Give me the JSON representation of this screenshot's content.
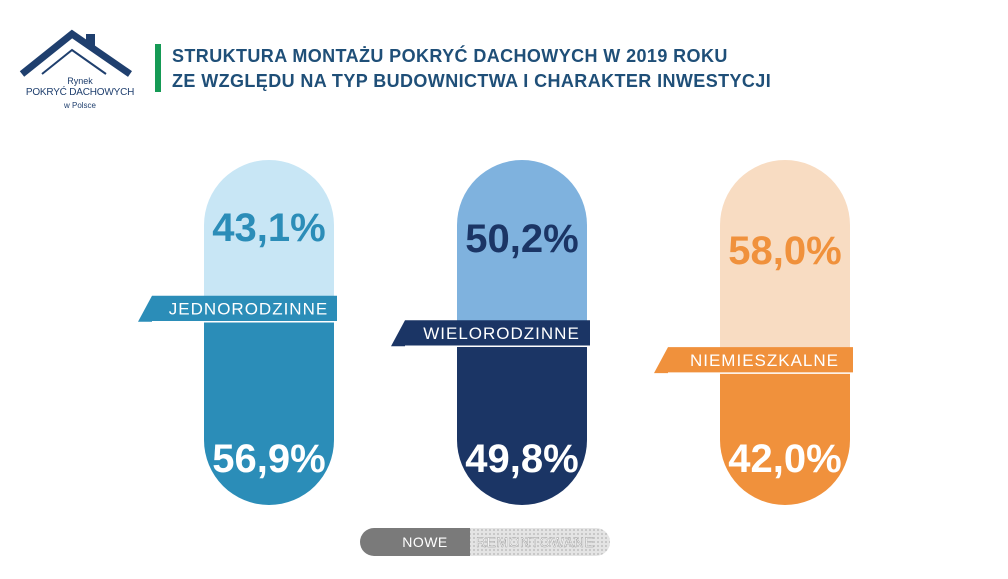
{
  "logo": {
    "line1": "Rynek",
    "line2": "POKRYĆ DACHOWYCH",
    "line3": "w Polsce",
    "icon": "house-roof-icon"
  },
  "title": {
    "line1": "STRUKTURA MONTAŻU POKRYĆ DACHOWYCH W 2019 ROKU",
    "line2": "ZE WZGLĘDU NA TYP BUDOWNICTWA I CHARAKTER INWESTYCJI"
  },
  "colors": {
    "title_text": "#1f4f78",
    "title_accent": "#159a55",
    "logo": "#1f3f6e"
  },
  "chart_data": {
    "type": "bar",
    "stacked": true,
    "categories": [
      "JEDNORODZINNE",
      "WIELORODZINNE",
      "NIEMIESZKALNE"
    ],
    "series": [
      {
        "name": "NOWE",
        "values": [
          56.9,
          49.8,
          42.0
        ],
        "labels": [
          "56,9%",
          "49,8%",
          "42,0%"
        ],
        "colors": [
          "#2b8db8",
          "#1b3565",
          "#f0913c"
        ]
      },
      {
        "name": "REMONTOWANE",
        "values": [
          43.1,
          50.2,
          58.0
        ],
        "labels": [
          "43,1%",
          "50,2%",
          "58,0%"
        ],
        "colors": [
          "#c8e6f5",
          "#7fb2de",
          "#f8dcc2"
        ],
        "label_colors": [
          "#2b8db8",
          "#1b3565",
          "#f0913c"
        ]
      }
    ],
    "category_label_colors": [
      "#2b8db8",
      "#1b3565",
      "#f0913c"
    ],
    "unit": "%",
    "ylim": [
      0,
      100
    ],
    "legend": {
      "position": "bottom-center",
      "items": [
        "NOWE",
        "REMONTOWANE"
      ],
      "colors": [
        "#7a7a7a",
        "#d9d9d9"
      ]
    },
    "grid": false
  }
}
